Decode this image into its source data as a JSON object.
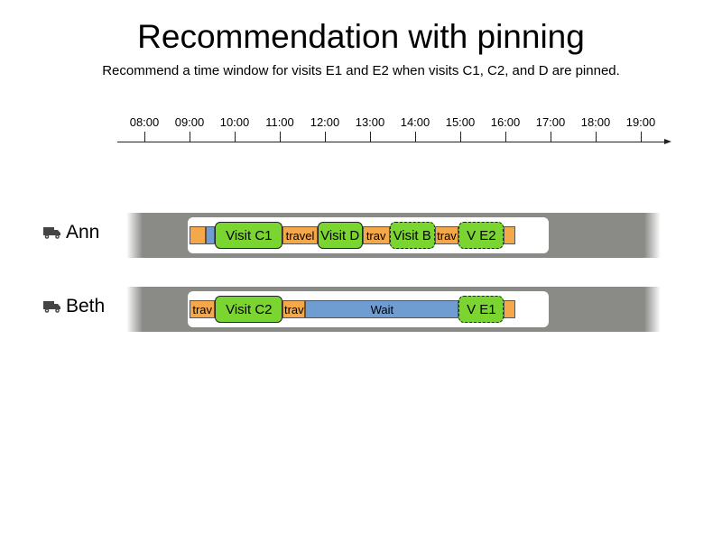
{
  "title": "Recommendation with pinning",
  "subtitle": "Recommend a time window for visits E1 and E2 when visits C1, C2, and D are pinned.",
  "timeline": {
    "start_hour": 8,
    "ticks": [
      "08:00",
      "09:00",
      "10:00",
      "11:00",
      "12:00",
      "13:00",
      "14:00",
      "15:00",
      "16:00",
      "17:00",
      "18:00",
      "19:00"
    ]
  },
  "icon": "truck-icon",
  "colors": {
    "travel": "#f5a84a",
    "wait": "#6f9dd2",
    "visit": "#7bd530",
    "lane": "#8a8a86"
  },
  "lanes": [
    {
      "name": "Ann",
      "segments": [
        {
          "kind": "travel",
          "label": "",
          "start": "09:00",
          "end": "09:22"
        },
        {
          "kind": "wait",
          "label": "",
          "start": "09:22",
          "end": "09:34"
        },
        {
          "kind": "visit",
          "label": "Visit C1",
          "start": "09:34",
          "end": "11:04"
        },
        {
          "kind": "travel",
          "label": "travel",
          "start": "11:04",
          "end": "11:50"
        },
        {
          "kind": "visit",
          "label": "Visit D",
          "start": "11:50",
          "end": "12:50"
        },
        {
          "kind": "travel",
          "label": "trav",
          "start": "12:50",
          "end": "13:26"
        },
        {
          "kind": "visit-dashed",
          "label": "Visit B",
          "start": "13:26",
          "end": "14:26"
        },
        {
          "kind": "travel",
          "label": "trav",
          "start": "14:26",
          "end": "14:58"
        },
        {
          "kind": "visit-dashed",
          "label": "V E2",
          "start": "14:58",
          "end": "15:58"
        },
        {
          "kind": "travel",
          "label": "",
          "start": "15:58",
          "end": "16:13"
        }
      ]
    },
    {
      "name": "Beth",
      "segments": [
        {
          "kind": "travel",
          "label": "trav",
          "start": "09:00",
          "end": "09:34"
        },
        {
          "kind": "visit",
          "label": "Visit C2",
          "start": "09:34",
          "end": "11:04"
        },
        {
          "kind": "travel",
          "label": "trav",
          "start": "11:04",
          "end": "11:34"
        },
        {
          "kind": "wait",
          "label": "Wait",
          "start": "11:34",
          "end": "14:58"
        },
        {
          "kind": "visit-dashed",
          "label": "V E1",
          "start": "14:58",
          "end": "15:58"
        },
        {
          "kind": "travel",
          "label": "",
          "start": "15:58",
          "end": "16:13"
        }
      ]
    }
  ]
}
